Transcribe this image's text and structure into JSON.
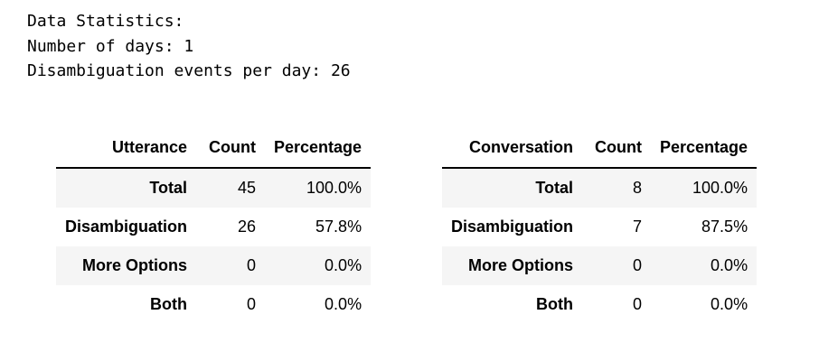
{
  "stats": {
    "heading": "Data Statistics:",
    "days": "Number of days: 1",
    "events": "Disambiguation events per day: 26"
  },
  "utterance_table": {
    "columns": [
      "Utterance",
      "Count",
      "Percentage"
    ],
    "rows": [
      {
        "label": "Total",
        "count": "45",
        "percentage": "100.0%"
      },
      {
        "label": "Disambiguation",
        "count": "26",
        "percentage": "57.8%"
      },
      {
        "label": "More Options",
        "count": "0",
        "percentage": "0.0%"
      },
      {
        "label": "Both",
        "count": "0",
        "percentage": "0.0%"
      }
    ]
  },
  "conversation_table": {
    "columns": [
      "Conversation",
      "Count",
      "Percentage"
    ],
    "rows": [
      {
        "label": "Total",
        "count": "8",
        "percentage": "100.0%"
      },
      {
        "label": "Disambiguation",
        "count": "7",
        "percentage": "87.5%"
      },
      {
        "label": "More Options",
        "count": "0",
        "percentage": "0.0%"
      },
      {
        "label": "Both",
        "count": "0",
        "percentage": "0.0%"
      }
    ]
  }
}
